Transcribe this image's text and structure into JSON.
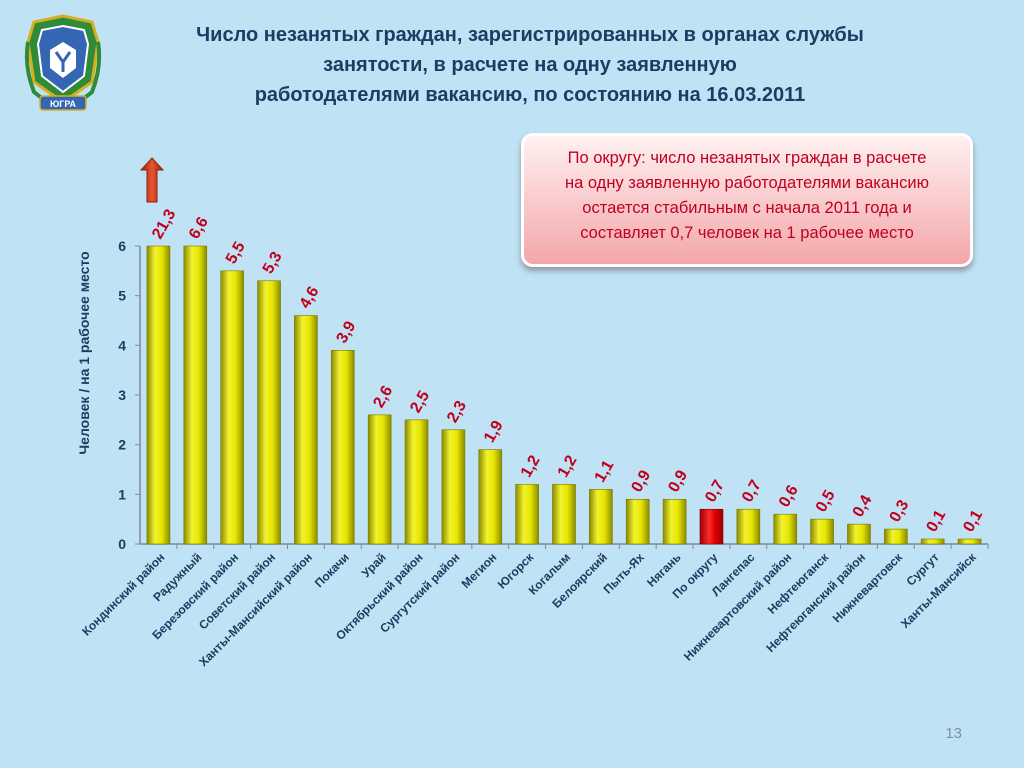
{
  "title": {
    "line1": "Число незанятых граждан, зарегистрированных в органах службы",
    "line2": "занятости, в расчете на одну заявленную",
    "line3": "работодателями вакансию, по состоянию на 16.03.2011"
  },
  "emblem_text": "ЮГРА",
  "callout": {
    "line1": "По округу: число незанятых граждан в расчете",
    "line2": "на одну заявленную работодателями вакансию",
    "line3": "остается стабильным  с начала 2011 года и",
    "line4": "составляет 0,7 человек на 1 рабочее место"
  },
  "page_number": "13",
  "colors": {
    "bar": "#d6d600",
    "highlight_bar": "#e00000",
    "label": "#c0001e",
    "axis_text": "#1f3b63",
    "arrow": "#d43a1e"
  },
  "chart_data": {
    "type": "bar",
    "categories": [
      "Кондинский район",
      "Радужный",
      "Березовский район",
      "Советский район",
      "Ханты-Мансийский район",
      "Покачи",
      "Урай",
      "Октябрьский район",
      "Сургутский район",
      "Мегион",
      "Югорск",
      "Когалым",
      "Белоярский",
      "Пыть-Ях",
      "Нягань",
      "По округу",
      "Лангепас",
      "Нижневартовский район",
      "Нефтеюганск",
      "Нефтеюганский район",
      "Нижневартовск",
      "Сургут",
      "Ханты-Мансийск"
    ],
    "values": [
      21.3,
      6.6,
      5.5,
      5.3,
      4.6,
      3.9,
      2.6,
      2.5,
      2.3,
      1.9,
      1.2,
      1.2,
      1.1,
      0.9,
      0.9,
      0.7,
      0.7,
      0.6,
      0.5,
      0.4,
      0.3,
      0.1,
      0.1
    ],
    "data_labels": [
      "21,3",
      "6,6",
      "5,5",
      "5,3",
      "4,6",
      "3,9",
      "2,6",
      "2,5",
      "2,3",
      "1,9",
      "1,2",
      "1,2",
      "1,1",
      "0,9",
      "0,9",
      "0,7",
      "0,7",
      "0,6",
      "0,5",
      "0,4",
      "0,3",
      "0,1",
      "0,1"
    ],
    "highlight_category": "По округу",
    "clipped_note": "values above the axis maximum are drawn at the axis maximum",
    "ylabel": "Человек / на 1 рабочее место",
    "xlabel": "",
    "ylim": [
      0,
      6
    ],
    "yticks": [
      "0",
      "1",
      "2",
      "3",
      "4",
      "5",
      "6"
    ],
    "grid": false,
    "legend": "none"
  }
}
